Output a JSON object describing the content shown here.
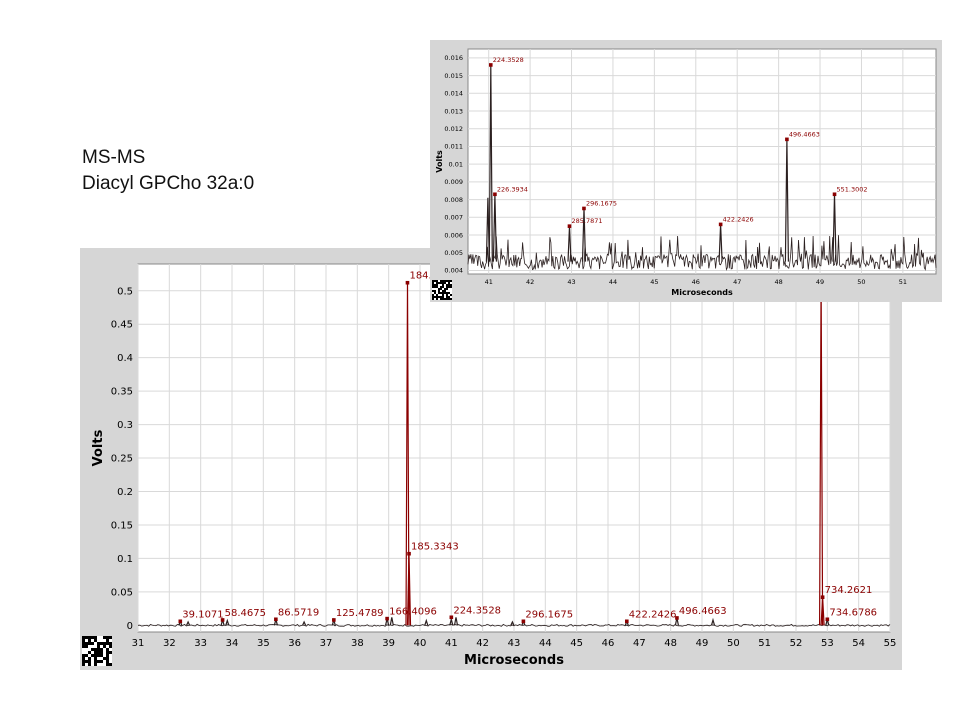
{
  "slide": {
    "title_line1": "MS-MS",
    "title_line2": "Diacyl GPCho 32a:0"
  },
  "colors": {
    "trace": "#2b2020",
    "peak": "#8b0000",
    "label": "#8b0000",
    "panel": "#d6d6d6",
    "grid": "#d9d9d9"
  },
  "chart_data": [
    {
      "type": "line",
      "xlabel": "Microseconds",
      "ylabel": "Volts",
      "xlim": [
        31,
        55
      ],
      "ylim": [
        -0.01,
        0.54
      ],
      "xticks": [
        31,
        32,
        33,
        34,
        35,
        36,
        37,
        38,
        39,
        40,
        41,
        42,
        43,
        44,
        45,
        46,
        47,
        48,
        49,
        50,
        51,
        52,
        53,
        54,
        55
      ],
      "yticks": [
        0,
        0.05,
        0.1,
        0.15,
        0.2,
        0.25,
        0.3,
        0.35,
        0.4,
        0.45,
        0.5
      ],
      "ytick_labels": [
        "0",
        "0.05",
        "0.1",
        "0.15",
        "0.2",
        "0.25",
        "0.3",
        "0.35",
        "0.4",
        "0.45",
        "0.5"
      ],
      "grid": true,
      "peaks": [
        {
          "x": 32.35,
          "y": 0.006
        },
        {
          "x": 32.6,
          "y": 0.005
        },
        {
          "x": 33.7,
          "y": 0.008
        },
        {
          "x": 33.85,
          "y": 0.007
        },
        {
          "x": 35.4,
          "y": 0.009
        },
        {
          "x": 36.3,
          "y": 0.005
        },
        {
          "x": 37.25,
          "y": 0.008
        },
        {
          "x": 38.95,
          "y": 0.01
        },
        {
          "x": 39.1,
          "y": 0.012
        },
        {
          "x": 39.6,
          "y": 0.512
        },
        {
          "x": 39.65,
          "y": 0.107
        },
        {
          "x": 40.2,
          "y": 0.007
        },
        {
          "x": 41.0,
          "y": 0.009
        },
        {
          "x": 41.15,
          "y": 0.012
        },
        {
          "x": 42.95,
          "y": 0.005
        },
        {
          "x": 43.3,
          "y": 0.006
        },
        {
          "x": 46.6,
          "y": 0.006
        },
        {
          "x": 48.2,
          "y": 0.011
        },
        {
          "x": 49.35,
          "y": 0.008
        },
        {
          "x": 52.8,
          "y": 0.52
        },
        {
          "x": 52.85,
          "y": 0.042
        },
        {
          "x": 53.0,
          "y": 0.009
        }
      ],
      "labels": [
        {
          "text": "39.1071",
          "x": 32.35,
          "y": 0.006
        },
        {
          "text": "58.4675",
          "x": 33.7,
          "y": 0.008
        },
        {
          "text": "86.5719",
          "x": 35.4,
          "y": 0.009
        },
        {
          "text": "125.4789",
          "x": 37.25,
          "y": 0.008
        },
        {
          "text": "166.4096",
          "x": 38.95,
          "y": 0.01
        },
        {
          "text": "184.",
          "x": 39.6,
          "y": 0.512
        },
        {
          "text": "185.3343",
          "x": 39.65,
          "y": 0.107
        },
        {
          "text": "224.3528",
          "x": 41.0,
          "y": 0.012
        },
        {
          "text": "296.1675",
          "x": 43.3,
          "y": 0.006
        },
        {
          "text": "422.2426",
          "x": 46.6,
          "y": 0.006
        },
        {
          "text": "496.4663",
          "x": 48.2,
          "y": 0.011
        },
        {
          "text": "734.2621",
          "x": 52.85,
          "y": 0.042
        },
        {
          "text": "734.6786",
          "x": 53.0,
          "y": 0.009
        }
      ]
    },
    {
      "type": "line",
      "xlabel": "Microseconds",
      "ylabel": "Volts",
      "xlim": [
        40.5,
        51.8
      ],
      "ylim": [
        0.0038,
        0.0165
      ],
      "xticks": [
        41,
        42,
        43,
        44,
        45,
        46,
        47,
        48,
        49,
        50,
        51
      ],
      "yticks": [
        0.004,
        0.005,
        0.006,
        0.007,
        0.008,
        0.009,
        0.01,
        0.011,
        0.012,
        0.013,
        0.014,
        0.015,
        0.016
      ],
      "ytick_labels": [
        "0.004",
        "0.005",
        "0.006",
        "0.007",
        "0.008",
        "0.009",
        "0.01",
        "0.011",
        "0.012",
        "0.013",
        "0.014",
        "0.015",
        "0.016"
      ],
      "grid": true,
      "peaks": [
        {
          "x": 40.98,
          "y": 0.0081
        },
        {
          "x": 41.05,
          "y": 0.0156
        },
        {
          "x": 41.15,
          "y": 0.0083
        },
        {
          "x": 42.95,
          "y": 0.0065
        },
        {
          "x": 43.3,
          "y": 0.0075
        },
        {
          "x": 46.6,
          "y": 0.0066
        },
        {
          "x": 48.2,
          "y": 0.0114
        },
        {
          "x": 49.35,
          "y": 0.0083
        }
      ],
      "labels": [
        {
          "text": "224.3528",
          "x": 41.05,
          "y": 0.0156
        },
        {
          "text": "226.3934",
          "x": 41.15,
          "y": 0.0083
        },
        {
          "text": "285.7871",
          "x": 42.95,
          "y": 0.0065
        },
        {
          "text": "296.1675",
          "x": 43.3,
          "y": 0.0075
        },
        {
          "text": "422.2426",
          "x": 46.6,
          "y": 0.0066
        },
        {
          "text": "496.4663",
          "x": 48.2,
          "y": 0.0114
        },
        {
          "text": "551.3002",
          "x": 49.35,
          "y": 0.0083
        }
      ]
    }
  ]
}
